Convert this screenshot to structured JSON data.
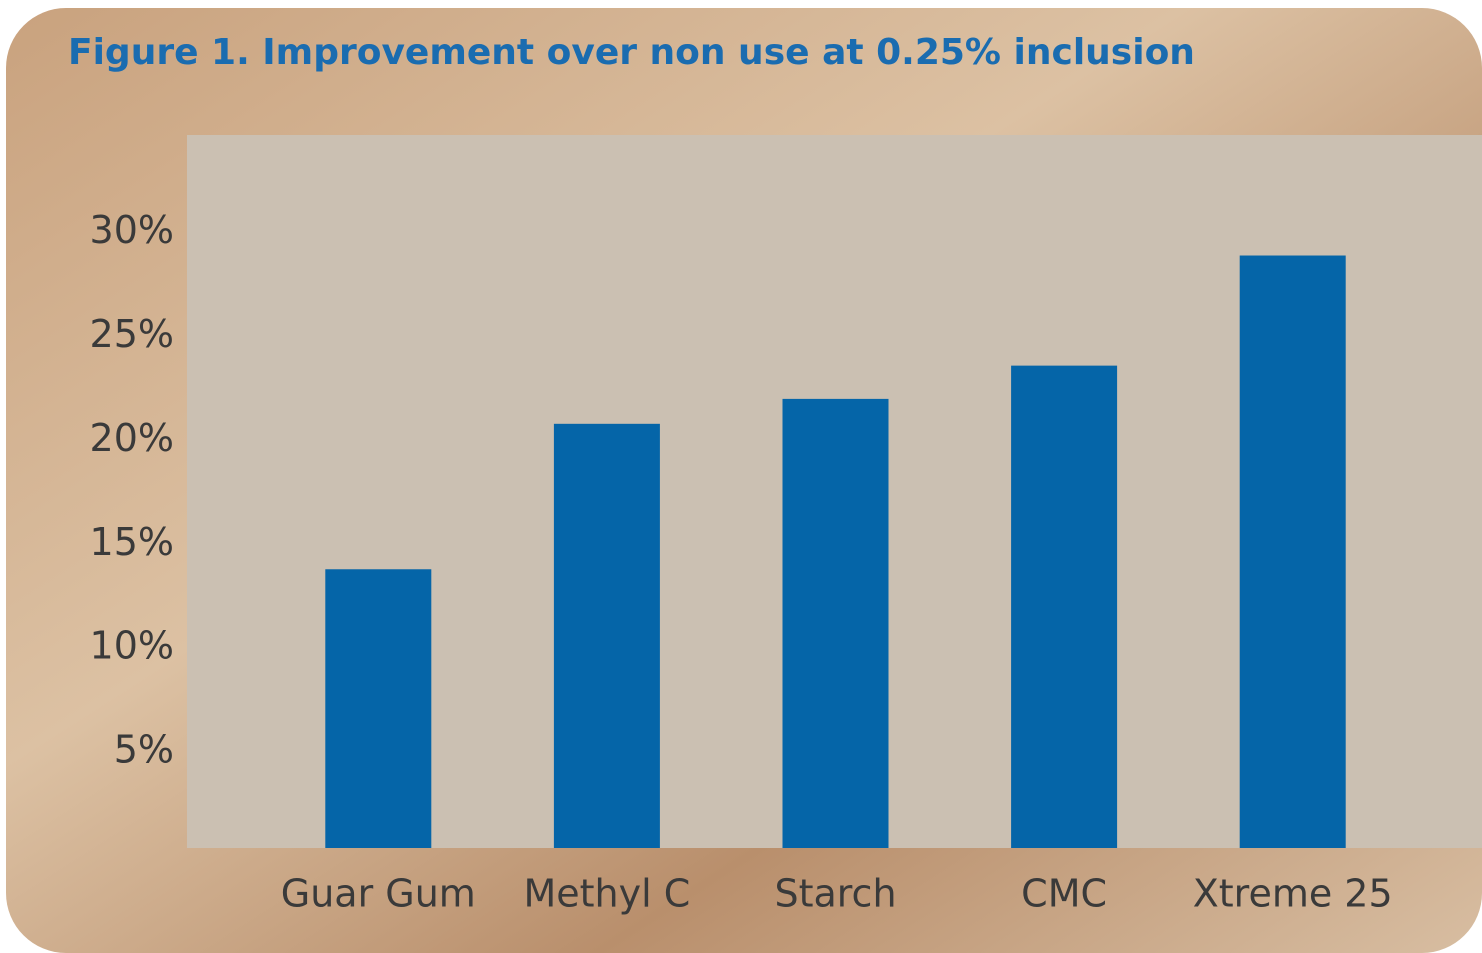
{
  "chart_data": {
    "type": "bar",
    "title": "Figure 1. Improvement over non use at 0.25% inclusion",
    "categories": [
      "Guar Gum",
      "Methyl C",
      "Starch",
      "CMC",
      "Xtreme 25"
    ],
    "values": [
      13.8,
      20.8,
      22.0,
      23.6,
      28.9
    ],
    "color": "#0565a8",
    "ylim": [
      0,
      34.7
    ],
    "yticks": [
      {
        "value": 5,
        "label": "5%"
      },
      {
        "value": 10,
        "label": "10%"
      },
      {
        "value": 15,
        "label": "15%"
      },
      {
        "value": 20,
        "label": "20%"
      },
      {
        "value": 25,
        "label": "25%"
      },
      {
        "value": 30,
        "label": "30%"
      }
    ],
    "grid": true
  }
}
